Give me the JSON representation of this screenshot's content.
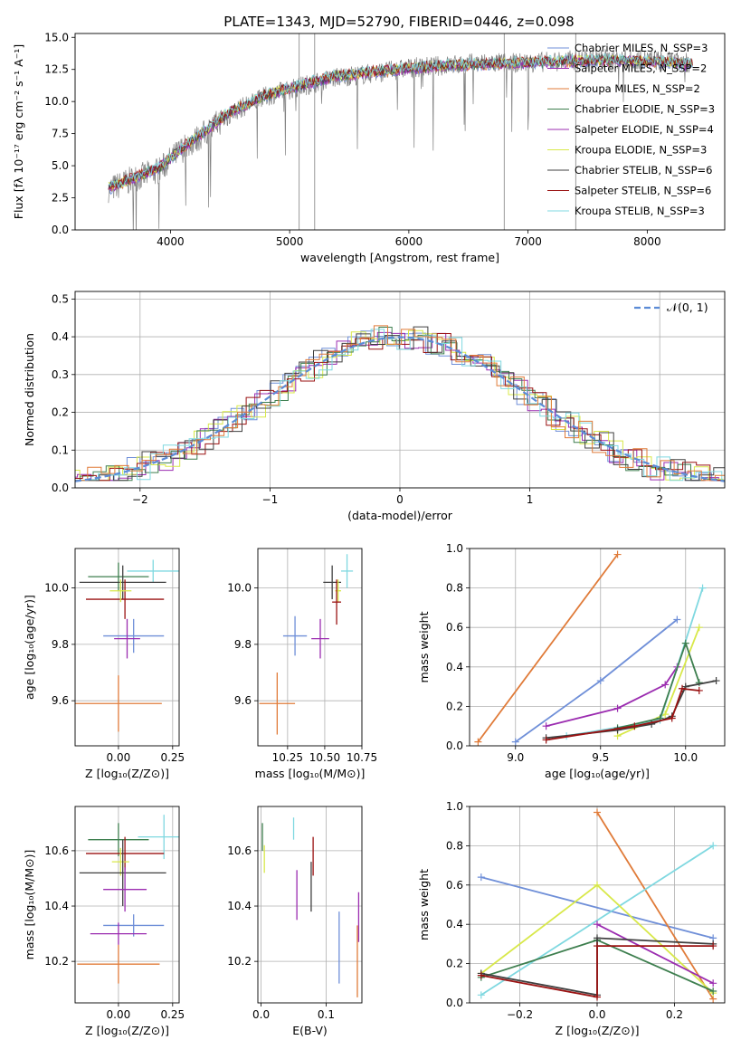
{
  "figure_title": "PLATE=1343, MJD=52790, FIBERID=0446, z=0.098",
  "colors": {
    "chabrier_miles": "#6f8fd8",
    "salpeter_miles": "#9b2cb0",
    "kroupa_miles": "#e07b39",
    "chabrier_elodie": "#3e7f4f",
    "salpeter_elodie": "#9b2cb0",
    "kroupa_elodie": "#d8e84a",
    "chabrier_stelib": "#404040",
    "salpeter_stelib": "#9a1212",
    "kroupa_stelib": "#7fd8e0",
    "grid": "#b0b0b0",
    "normal_curve": "#5b8bd6"
  },
  "chart_data": [
    {
      "id": "spectrum",
      "type": "line",
      "title": "PLATE=1343, MJD=52790, FIBERID=0446, z=0.098",
      "xlabel": "wavelength [Angstrom, rest frame]",
      "ylabel": "Flux [fλ 10⁻¹⁷ erg cm⁻² s⁻¹ A⁻¹]",
      "xlim": [
        3200,
        8650
      ],
      "ylim": [
        0,
        15.3
      ],
      "xticks": [
        "4000",
        "5000",
        "6000",
        "7000",
        "8000"
      ],
      "yticks": [
        "0.0",
        "2.5",
        "5.0",
        "7.5",
        "10.0",
        "12.5",
        "15.0"
      ],
      "grid": false,
      "legend_position": "right",
      "legend": [
        "Chabrier MILES, N_SSP=3",
        "Salpeter MILES, N_SSP=2",
        "Kroupa MILES, N_SSP=2",
        "Chabrier ELODIE, N_SSP=3",
        "Salpeter ELODIE, N_SSP=4",
        "Kroupa ELODIE, N_SSP=3",
        "Chabrier STELIB, N_SSP=6",
        "Salpeter STELIB, N_SSP=6",
        "Kroupa STELIB, N_SSP=3"
      ],
      "data_x": [
        3500,
        3700,
        3900,
        4100,
        4300,
        4500,
        4800,
        5100,
        5400,
        5700,
        6000,
        6300,
        6600,
        6900,
        7200,
        7500,
        7800,
        8100,
        8300
      ],
      "data_y": [
        3.2,
        4.0,
        4.6,
        6.3,
        7.6,
        9.1,
        10.4,
        11.2,
        11.9,
        12.2,
        12.6,
        12.8,
        13.0,
        13.0,
        13.1,
        13.3,
        13.3,
        13.2,
        13.0
      ],
      "model_y": [
        3.3,
        4.1,
        4.8,
        6.4,
        7.8,
        9.2,
        10.5,
        11.3,
        12.0,
        12.3,
        12.6,
        12.8,
        12.9,
        13.0,
        13.1,
        13.2,
        13.2,
        13.1,
        12.9
      ]
    },
    {
      "id": "residuals",
      "type": "line",
      "xlabel": "(data-model)/error",
      "ylabel": "Normed distribution",
      "xlim": [
        -2.5,
        2.5
      ],
      "ylim": [
        0,
        0.52
      ],
      "xticks": [
        "−2",
        "−1",
        "0",
        "1",
        "2"
      ],
      "yticks": [
        "0.0",
        "0.1",
        "0.2",
        "0.3",
        "0.4",
        "0.5"
      ],
      "grid": true,
      "legend_position": "top-right",
      "legend": [
        "𝒩(0, 1)"
      ]
    },
    {
      "id": "age_vs_Z",
      "type": "scatter",
      "xlabel": "Z [log₁₀(Z/Z⊙)]",
      "ylabel": "age  [log₁₀(age/yr)]",
      "xlim": [
        -0.2,
        0.28
      ],
      "ylim": [
        9.44,
        10.14
      ],
      "xticks": [
        "0.00",
        "0.25"
      ],
      "yticks": [
        "9.6",
        "9.8",
        "10.0"
      ],
      "grid": true,
      "points": [
        {
          "color": "kroupa_stelib",
          "x": 0.16,
          "y": 10.06,
          "xerr": 0.12,
          "yerr": 0.04
        },
        {
          "color": "chabrier_elodie",
          "x": 0.0,
          "y": 10.04,
          "xerr": 0.14,
          "yerr": 0.05
        },
        {
          "color": "chabrier_stelib",
          "x": 0.02,
          "y": 10.02,
          "xerr": 0.2,
          "yerr": 0.06
        },
        {
          "color": "salpeter_stelib",
          "x": 0.03,
          "y": 9.96,
          "xerr": 0.18,
          "yerr": 0.07
        },
        {
          "color": "kroupa_elodie",
          "x": 0.01,
          "y": 9.99,
          "xerr": 0.05,
          "yerr": 0.04
        },
        {
          "color": "chabrier_miles",
          "x": 0.07,
          "y": 9.83,
          "xerr": 0.14,
          "yerr": 0.06
        },
        {
          "color": "salpeter_elodie",
          "x": 0.04,
          "y": 9.82,
          "xerr": 0.06,
          "yerr": 0.07
        },
        {
          "color": "kroupa_miles",
          "x": 0.0,
          "y": 9.59,
          "xerr": 0.2,
          "yerr": 0.1
        }
      ]
    },
    {
      "id": "age_vs_mass",
      "type": "scatter",
      "xlabel": "mass [log₁₀(M/M⊙)]",
      "ylabel": "",
      "xlim": [
        10.05,
        10.75
      ],
      "ylim": [
        9.44,
        10.14
      ],
      "xticks": [
        "10.25",
        "10.50",
        "10.75"
      ],
      "yticks": [
        "9.6",
        "9.8",
        "10.0"
      ],
      "grid": true,
      "points": [
        {
          "color": "kroupa_stelib",
          "x": 10.65,
          "y": 10.06,
          "xerr": 0.04,
          "yerr": 0.06
        },
        {
          "color": "chabrier_stelib",
          "x": 10.55,
          "y": 10.02,
          "xerr": 0.06,
          "yerr": 0.06
        },
        {
          "color": "kroupa_elodie",
          "x": 10.59,
          "y": 9.99,
          "xerr": 0.02,
          "yerr": 0.04
        },
        {
          "color": "salpeter_stelib",
          "x": 10.58,
          "y": 9.95,
          "xerr": 0.03,
          "yerr": 0.08
        },
        {
          "color": "chabrier_miles",
          "x": 10.3,
          "y": 9.83,
          "xerr": 0.08,
          "yerr": 0.07
        },
        {
          "color": "salpeter_elodie",
          "x": 10.47,
          "y": 9.82,
          "xerr": 0.06,
          "yerr": 0.07
        },
        {
          "color": "kroupa_miles",
          "x": 10.18,
          "y": 9.59,
          "xerr": 0.12,
          "yerr": 0.11
        }
      ]
    },
    {
      "id": "mass_weight_vs_age",
      "type": "line",
      "xlabel": "age  [log₁₀(age/yr)]",
      "ylabel": "mass weight",
      "xlim": [
        8.73,
        10.23
      ],
      "ylim": [
        0,
        1.0
      ],
      "xticks": [
        "9.0",
        "9.5",
        "10.0"
      ],
      "yticks": [
        "0.0",
        "0.2",
        "0.4",
        "0.6",
        "0.8",
        "1.0"
      ],
      "grid": true,
      "series": [
        {
          "color": "kroupa_miles",
          "x": [
            8.78,
            9.6
          ],
          "y": [
            0.02,
            0.97
          ]
        },
        {
          "color": "chabrier_miles",
          "x": [
            9.0,
            9.5,
            9.95
          ],
          "y": [
            0.02,
            0.33,
            0.64
          ]
        },
        {
          "color": "salpeter_elodie",
          "x": [
            9.18,
            9.6,
            9.88,
            9.95
          ],
          "y": [
            0.1,
            0.19,
            0.31,
            0.4
          ]
        },
        {
          "color": "kroupa_elodie",
          "x": [
            9.6,
            9.88,
            10.08
          ],
          "y": [
            0.05,
            0.16,
            0.6
          ]
        },
        {
          "color": "kroupa_stelib",
          "x": [
            9.3,
            9.85,
            10.1
          ],
          "y": [
            0.05,
            0.13,
            0.8
          ]
        },
        {
          "color": "chabrier_elodie",
          "x": [
            9.6,
            9.85,
            10.0,
            10.08
          ],
          "y": [
            0.09,
            0.14,
            0.52,
            0.32
          ]
        },
        {
          "color": "chabrier_stelib",
          "x": [
            9.18,
            9.6,
            9.8,
            9.92,
            10.0,
            10.18
          ],
          "y": [
            0.04,
            0.08,
            0.11,
            0.15,
            0.3,
            0.33
          ]
        },
        {
          "color": "salpeter_stelib",
          "x": [
            9.18,
            9.7,
            9.92,
            9.98,
            10.08
          ],
          "y": [
            0.03,
            0.1,
            0.14,
            0.29,
            0.28
          ]
        }
      ]
    },
    {
      "id": "mass_vs_Z",
      "type": "scatter",
      "xlabel": "Z [log₁₀(Z/Z⊙)]",
      "ylabel": "mass [log₁₀(M/M⊙)]",
      "xlim": [
        -0.2,
        0.28
      ],
      "ylim": [
        10.05,
        10.76
      ],
      "xticks": [
        "0.00",
        "0.25"
      ],
      "yticks": [
        "10.2",
        "10.4",
        "10.6"
      ],
      "grid": true,
      "points": [
        {
          "color": "kroupa_stelib",
          "x": 0.21,
          "y": 10.65,
          "xerr": 0.12,
          "yerr": 0.08
        },
        {
          "color": "chabrier_elodie",
          "x": 0.0,
          "y": 10.64,
          "xerr": 0.14,
          "yerr": 0.06
        },
        {
          "color": "salpeter_stelib",
          "x": 0.03,
          "y": 10.59,
          "xerr": 0.18,
          "yerr": 0.06
        },
        {
          "color": "kroupa_elodie",
          "x": 0.01,
          "y": 10.56,
          "xerr": 0.04,
          "yerr": 0.05
        },
        {
          "color": "chabrier_stelib",
          "x": 0.02,
          "y": 10.52,
          "xerr": 0.2,
          "yerr": 0.12
        },
        {
          "color": "salpeter_elodie",
          "x": 0.03,
          "y": 10.46,
          "xerr": 0.1,
          "yerr": 0.08
        },
        {
          "color": "chabrier_miles",
          "x": 0.07,
          "y": 10.33,
          "xerr": 0.14,
          "yerr": 0.04
        },
        {
          "color": "salpeter_miles",
          "x": 0.0,
          "y": 10.3,
          "xerr": 0.13,
          "yerr": 0.04
        },
        {
          "color": "kroupa_miles",
          "x": 0.0,
          "y": 10.19,
          "xerr": 0.19,
          "yerr": 0.07
        }
      ]
    },
    {
      "id": "mass_vs_ebv",
      "type": "scatter",
      "xlabel": "E(B-V)",
      "ylabel": "",
      "xlim": [
        -0.005,
        0.155
      ],
      "ylim": [
        10.05,
        10.76
      ],
      "xticks": [
        "0.0",
        "0.1"
      ],
      "yticks": [
        "10.2",
        "10.4",
        "10.6"
      ],
      "grid": true,
      "points": [
        {
          "color": "chabrier_elodie",
          "x": 0.002,
          "y": 10.65,
          "yerr": 0.05
        },
        {
          "color": "kroupa_elodie",
          "x": 0.005,
          "y": 10.57,
          "yerr": 0.05
        },
        {
          "color": "kroupa_stelib",
          "x": 0.05,
          "y": 10.68,
          "yerr": 0.04
        },
        {
          "color": "salpeter_stelib",
          "x": 0.08,
          "y": 10.58,
          "yerr": 0.07
        },
        {
          "color": "chabrier_stelib",
          "x": 0.077,
          "y": 10.47,
          "yerr": 0.09
        },
        {
          "color": "salpeter_elodie",
          "x": 0.055,
          "y": 10.44,
          "yerr": 0.09
        },
        {
          "color": "chabrier_miles",
          "x": 0.12,
          "y": 10.25,
          "yerr": 0.13
        },
        {
          "color": "kroupa_miles",
          "x": 0.148,
          "y": 10.2,
          "yerr": 0.13
        },
        {
          "color": "salpeter_miles",
          "x": 0.15,
          "y": 10.36,
          "yerr": 0.09
        }
      ]
    },
    {
      "id": "mass_weight_vs_Z",
      "type": "line",
      "xlabel": "Z [log₁₀(Z/Z⊙)]",
      "ylabel": "mass weight",
      "xlim": [
        -0.33,
        0.33
      ],
      "ylim": [
        0,
        1.0
      ],
      "xticks": [
        "−0.2",
        "0.0",
        "0.2"
      ],
      "yticks": [
        "0.0",
        "0.2",
        "0.4",
        "0.6",
        "0.8",
        "1.0"
      ],
      "grid": true,
      "series": [
        {
          "color": "chabrier_miles",
          "x": [
            -0.3,
            0.3
          ],
          "y": [
            0.64,
            0.33
          ]
        },
        {
          "color": "kroupa_miles",
          "x": [
            0.0,
            0.3
          ],
          "y": [
            0.97,
            0.02
          ]
        },
        {
          "color": "kroupa_stelib",
          "x": [
            -0.3,
            0.3
          ],
          "y": [
            0.04,
            0.8
          ]
        },
        {
          "color": "kroupa_elodie",
          "x": [
            -0.3,
            0.0,
            0.3
          ],
          "y": [
            0.15,
            0.6,
            0.05
          ]
        },
        {
          "color": "salpeter_elodie",
          "x": [
            0.0,
            0.3
          ],
          "y": [
            0.4,
            0.1
          ]
        },
        {
          "color": "chabrier_elodie",
          "x": [
            -0.3,
            0.0,
            0.3
          ],
          "y": [
            0.13,
            0.32,
            0.06
          ]
        },
        {
          "color": "chabrier_stelib",
          "x": [
            -0.3,
            0.0,
            0.0,
            0.3
          ],
          "y": [
            0.15,
            0.04,
            0.33,
            0.3
          ]
        },
        {
          "color": "salpeter_stelib",
          "x": [
            -0.3,
            0.0,
            0.0,
            0.3
          ],
          "y": [
            0.14,
            0.03,
            0.29,
            0.29
          ]
        }
      ]
    }
  ]
}
